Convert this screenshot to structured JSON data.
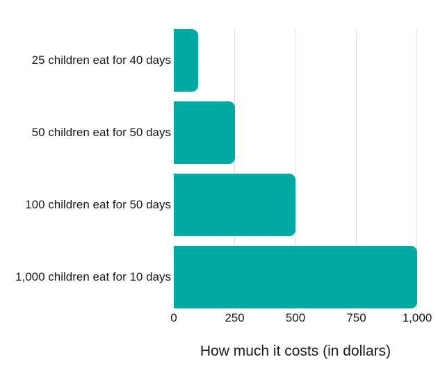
{
  "chart_data": {
    "type": "bar",
    "orientation": "horizontal",
    "title": "",
    "xlabel": "How much it costs (in dollars)",
    "categories": [
      "25 children eat for 40 days",
      "50 children eat for 50 days",
      "100 children eat for 50 days",
      "1,000 children eat for 10 days"
    ],
    "values": [
      100,
      250,
      500,
      1000
    ],
    "xlim": [
      0,
      1000
    ],
    "x_ticks": [
      {
        "label": "0",
        "value": 0
      },
      {
        "label": "250",
        "value": 250
      },
      {
        "label": "500",
        "value": 500
      },
      {
        "label": "750",
        "value": 750
      },
      {
        "label": "1,000",
        "value": 1000
      }
    ],
    "grid": "vertical",
    "gridline_at_zero": false,
    "legend_position": "none",
    "colors": {
      "bar": "#00a9a2",
      "gridline": "#e0e0e0",
      "text": "#1a1a1a",
      "background": "#ffffff"
    }
  }
}
